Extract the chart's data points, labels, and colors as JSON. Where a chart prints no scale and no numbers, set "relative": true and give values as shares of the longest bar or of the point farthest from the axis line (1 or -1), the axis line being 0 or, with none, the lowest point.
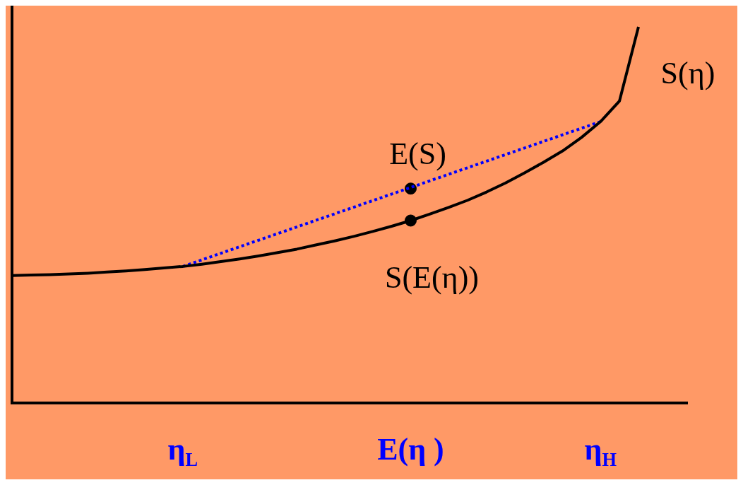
{
  "chart_data": {
    "type": "line",
    "relative": true,
    "legend": false,
    "grid": false,
    "marker": "none",
    "categories": [
      null,
      null,
      null,
      null,
      null,
      null,
      null,
      null,
      null,
      "η$_{L}$",
      null,
      null,
      null,
      null,
      null,
      null,
      null,
      null,
      null,
      null,
      null,
      "E(η )",
      null,
      null,
      null,
      null,
      null,
      null,
      null,
      null,
      null,
      "η$_{H}$",
      null,
      null
    ],
    "series": [
      {
        "name": "S(η)",
        "color": "#000000",
        "line_style": "solid",
        "values": [
          0.339,
          0.34,
          0.341,
          0.343,
          0.345,
          0.348,
          0.351,
          0.355,
          0.359,
          0.363,
          0.369,
          0.376,
          0.383,
          0.391,
          0.4,
          0.409,
          0.42,
          0.431,
          0.443,
          0.456,
          0.47,
          0.485,
          0.502,
          0.52,
          0.539,
          0.561,
          0.585,
          0.612,
          0.64,
          0.67,
          0.706,
          0.748,
          0.803,
          1
        ]
      },
      {
        "type": "line",
        "color": "#0000ff",
        "line_style": "dotted",
        "x": [
          "η$_{L}$",
          "η$_{H}$"
        ],
        "values": [
          0.363,
          0.748
        ]
      },
      {
        "type": "scatter",
        "color": "#000000",
        "marker": "circle",
        "x": [
          "E(η )"
        ],
        "values": [
          0.57
        ]
      },
      {
        "type": "scatter",
        "color": "#000000",
        "marker": "circle",
        "x": [
          "E(η )"
        ],
        "values": [
          0.485
        ]
      }
    ],
    "annotations": [
      {
        "text": "E(S)",
        "x": "E(η )",
        "y": 0.57
      },
      {
        "text": "S(E(η))",
        "x": "E(η )",
        "y": 0.485
      }
    ]
  }
}
